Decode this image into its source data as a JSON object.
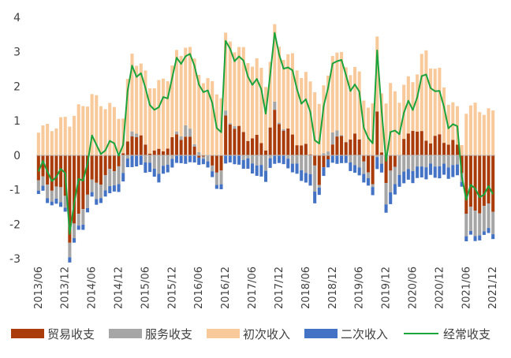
{
  "chart_data": {
    "type": "bar",
    "stacked": true,
    "title": "",
    "xlabel": "",
    "ylabel": "",
    "ylim": [
      -3,
      4
    ],
    "y_ticks": [
      4,
      3,
      2,
      1,
      0,
      -1,
      -2,
      -3
    ],
    "x_tick_labels": [
      "2013/06",
      "2013/12",
      "2014/06",
      "2014/12",
      "2015/06",
      "2015/12",
      "2016/06",
      "2016/12",
      "2017/06",
      "2017/12",
      "2018/06",
      "2018/12",
      "2019/06",
      "2019/12",
      "2020/06",
      "2020/12",
      "2021/06",
      "2021/12"
    ],
    "legend_position": "bottom",
    "grid": false,
    "series": [
      {
        "name": "贸易收支",
        "kind": "bar",
        "color": "#A93C0A"
      },
      {
        "name": "服务收支",
        "kind": "bar",
        "color": "#A6A6A6"
      },
      {
        "name": "初次收入",
        "kind": "bar",
        "color": "#F8C99A"
      },
      {
        "name": "二次收入",
        "kind": "bar",
        "color": "#4472C4"
      },
      {
        "name": "经常收支",
        "kind": "line",
        "color": "#1BA33C"
      }
    ],
    "anchor_points": [
      {
        "i": 0,
        "trade": -0.8,
        "service": -0.3,
        "primary": 0.8,
        "secondary": -0.1
      },
      {
        "i": 6,
        "trade": -1.0,
        "service": -0.4,
        "primary": 1.0,
        "secondary": -0.1
      },
      {
        "i": 7,
        "trade": -2.4,
        "service": -0.4,
        "primary": 0.9,
        "secondary": -0.1
      },
      {
        "i": 12,
        "trade": -0.9,
        "service": -0.4,
        "primary": 1.8,
        "secondary": -0.1
      },
      {
        "i": 19,
        "trade": -0.1,
        "service": -0.5,
        "primary": 1.0,
        "secondary": -0.2
      },
      {
        "i": 21,
        "trade": 0.6,
        "service": 0.2,
        "primary": 2.3,
        "secondary": -0.3
      },
      {
        "i": 27,
        "trade": 0.1,
        "service": -0.5,
        "primary": 1.8,
        "secondary": -0.2
      },
      {
        "i": 33,
        "trade": 0.6,
        "service": 0.3,
        "primary": 2.5,
        "secondary": -0.2
      },
      {
        "i": 41,
        "trade": -0.6,
        "service": -0.4,
        "primary": 1.8,
        "secondary": -0.1
      },
      {
        "i": 42,
        "trade": 1.0,
        "service": 0.1,
        "primary": 2.2,
        "secondary": -0.2
      },
      {
        "i": 43,
        "trade": 1.0,
        "service": 0.1,
        "primary": 2.4,
        "secondary": -0.2
      },
      {
        "i": 51,
        "trade": 0.2,
        "service": -0.4,
        "primary": 2.0,
        "secondary": -0.3
      },
      {
        "i": 53,
        "trade": 1.2,
        "service": 0.2,
        "primary": 2.2,
        "secondary": -0.2
      },
      {
        "i": 62,
        "trade": -0.2,
        "service": -0.7,
        "primary": 2.0,
        "secondary": -0.3
      },
      {
        "i": 63,
        "trade": -0.9,
        "service": -0.1,
        "primary": 1.7,
        "secondary": -0.2
      },
      {
        "i": 66,
        "trade": 0.5,
        "service": 0.3,
        "primary": 2.3,
        "secondary": -0.2
      },
      {
        "i": 72,
        "trade": 0.4,
        "service": -0.4,
        "primary": 1.9,
        "secondary": -0.2
      },
      {
        "i": 75,
        "trade": -0.9,
        "service": -0.1,
        "primary": 1.4,
        "secondary": -0.2
      },
      {
        "i": 76,
        "trade": 1.4,
        "service": 0.0,
        "primary": 2.0,
        "secondary": -0.3
      },
      {
        "i": 78,
        "trade": -0.9,
        "service": -0.6,
        "primary": 1.5,
        "secondary": -0.2
      },
      {
        "i": 79,
        "trade": -0.6,
        "service": -0.6,
        "primary": 1.9,
        "secondary": -0.3
      },
      {
        "i": 84,
        "trade": 0.9,
        "service": -0.4,
        "primary": 1.5,
        "secondary": -0.3
      },
      {
        "i": 87,
        "trade": 0.5,
        "service": -0.3,
        "primary": 2.4,
        "secondary": -0.3
      },
      {
        "i": 94,
        "trade": 0.3,
        "service": -0.3,
        "primary": 1.0,
        "secondary": -0.3
      },
      {
        "i": 95,
        "trade": -0.3,
        "service": -0.2,
        "primary": 0.3,
        "secondary": -0.1
      },
      {
        "i": 96,
        "trade": -1.6,
        "service": -0.7,
        "primary": 1.3,
        "secondary": -0.1
      }
    ]
  },
  "legend": {
    "trade": "贸易收支",
    "service": "服务收支",
    "primary": "初次收入",
    "secondary": "二次收入",
    "current": "经常收支"
  }
}
